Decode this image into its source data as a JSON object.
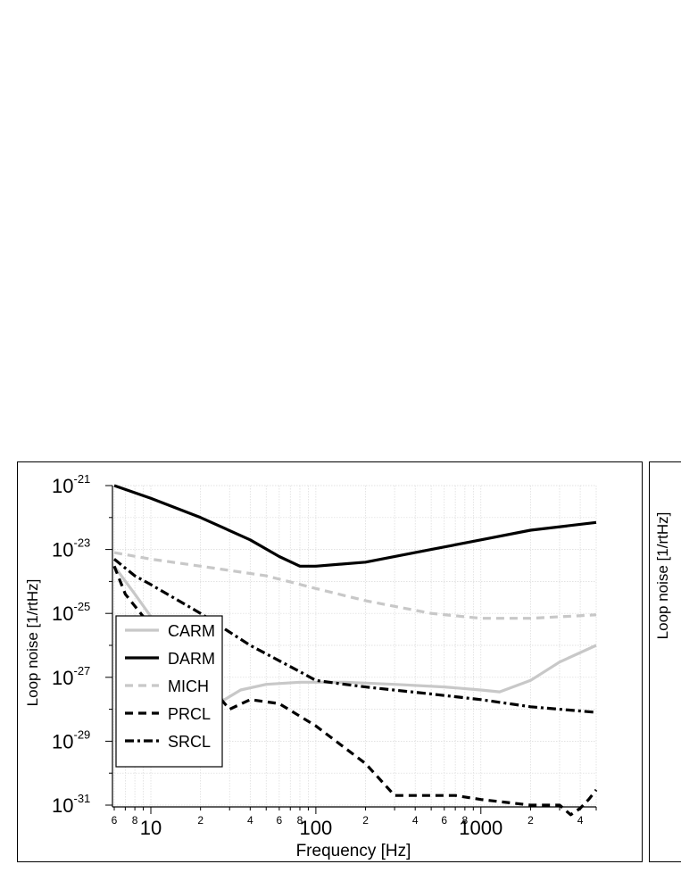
{
  "chart_data": [
    {
      "type": "line",
      "title": "",
      "xlabel": "Frequency [Hz]",
      "ylabel": "Loop noise [1/rtHz]",
      "xscale": "log",
      "yscale": "log",
      "xlim": [
        6,
        5000
      ],
      "ylim": [
        1e-31,
        1e-21
      ],
      "grid": true,
      "legend_position": "bottom-left",
      "x_major_ticks": [
        {
          "value": 10,
          "label": "10"
        },
        {
          "value": 100,
          "label": "100"
        },
        {
          "value": 1000,
          "label": "1000"
        }
      ],
      "x_minor_ticks": [
        {
          "value": 6,
          "label": "6"
        },
        {
          "value": 8,
          "label": "8"
        },
        {
          "value": 20,
          "label": "2"
        },
        {
          "value": 40,
          "label": "4"
        },
        {
          "value": 60,
          "label": "6"
        },
        {
          "value": 80,
          "label": "8"
        },
        {
          "value": 200,
          "label": "2"
        },
        {
          "value": 400,
          "label": "4"
        },
        {
          "value": 600,
          "label": "6"
        },
        {
          "value": 800,
          "label": "8"
        },
        {
          "value": 2000,
          "label": "2"
        },
        {
          "value": 4000,
          "label": "4"
        }
      ],
      "y_tick_labels": [
        {
          "exp": -21,
          "base": "10",
          "sup": "-21"
        },
        {
          "exp": -23,
          "base": "10",
          "sup": "-23"
        },
        {
          "exp": -25,
          "base": "10",
          "sup": "-25"
        },
        {
          "exp": -27,
          "base": "10",
          "sup": "-27"
        },
        {
          "exp": -29,
          "base": "10",
          "sup": "-29"
        },
        {
          "exp": -31,
          "base": "10",
          "sup": "-31"
        }
      ],
      "series": [
        {
          "name": "CARM",
          "color": "#c8c8c8",
          "style": "solid",
          "x": [
            6,
            8,
            10,
            15,
            20,
            25,
            28,
            35,
            50,
            80,
            150,
            300,
            600,
            1000,
            1300,
            2000,
            3000,
            5000
          ],
          "y": [
            3e-24,
            4e-25,
            8e-26,
            1e-26,
            2e-27,
            2e-28,
            2e-28,
            4e-28,
            6e-28,
            7e-28,
            7e-28,
            6e-28,
            5e-28,
            4e-28,
            3.5e-28,
            8e-28,
            3e-27,
            1e-26
          ]
        },
        {
          "name": "DARM",
          "color": "#000000",
          "style": "solid",
          "x": [
            6,
            10,
            20,
            40,
            60,
            80,
            100,
            200,
            500,
            1000,
            2000,
            5000
          ],
          "y": [
            1e-21,
            4e-22,
            1e-22,
            2e-23,
            6e-24,
            3e-24,
            3e-24,
            4e-24,
            1e-23,
            2e-23,
            4e-23,
            7e-23
          ]
        },
        {
          "name": "MICH",
          "color": "#c8c8c8",
          "style": "dash",
          "x": [
            6,
            10,
            20,
            50,
            100,
            200,
            500,
            1000,
            2000,
            5000
          ],
          "y": [
            8e-24,
            5e-24,
            3e-24,
            1.5e-24,
            6e-25,
            2.5e-25,
            1e-25,
            7e-26,
            7e-26,
            9e-26
          ]
        },
        {
          "name": "PRCL",
          "color": "#000000",
          "style": "dash",
          "x": [
            6,
            7,
            10,
            15,
            20,
            25,
            30,
            40,
            60,
            100,
            200,
            300,
            400,
            500,
            700,
            1000,
            2000,
            3000,
            3500,
            4000,
            4500,
            5000
          ],
          "y": [
            3e-24,
            4e-25,
            4e-26,
            1e-26,
            2e-27,
            3e-28,
            1e-28,
            2e-28,
            1.5e-28,
            3e-29,
            2e-30,
            2e-31,
            2e-31,
            2e-31,
            2e-31,
            1.5e-31,
            1e-31,
            1e-31,
            5e-32,
            8e-32,
            1.5e-31,
            3e-31
          ]
        },
        {
          "name": "SRCL",
          "color": "#000000",
          "style": "dashdot",
          "x": [
            6,
            8,
            10,
            20,
            40,
            80,
            100,
            150,
            200,
            500,
            1000,
            2000,
            5000
          ],
          "y": [
            5e-24,
            1.5e-24,
            8e-25,
            1e-25,
            1e-26,
            1.5e-27,
            8e-28,
            6e-28,
            5e-28,
            3e-28,
            2e-28,
            1.2e-28,
            8e-29
          ]
        }
      ]
    },
    {
      "type": "line",
      "ylabel": "Loop noise [1/rtHz]"
    }
  ]
}
